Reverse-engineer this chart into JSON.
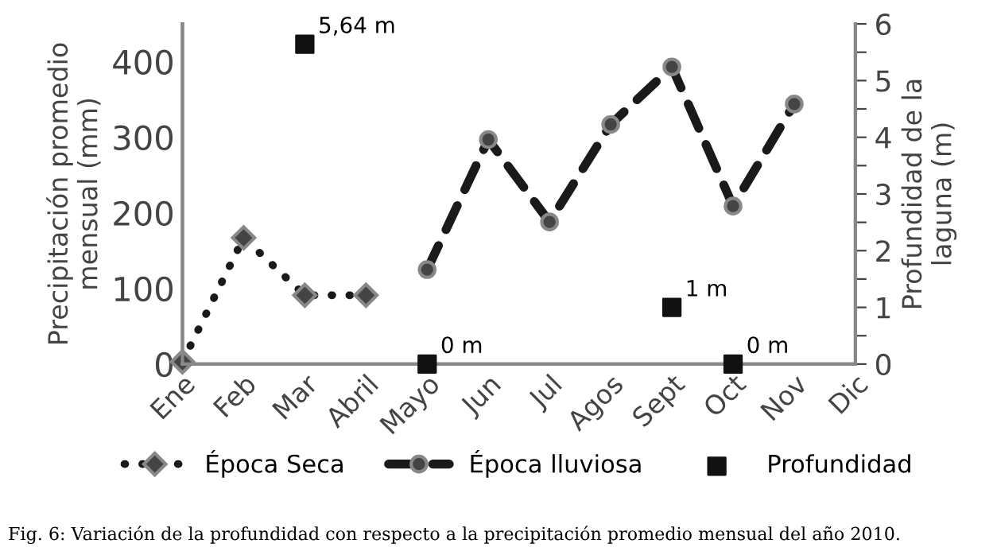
{
  "chart_data": {
    "type": "line",
    "ylabel": "Precipitación promedio\nmensual (mm)",
    "y2label": "Profundidad de la\nlaguna (m)",
    "categories": [
      "Ene",
      "Feb",
      "Mar",
      "Abril",
      "Mayo",
      "Jun",
      "Jul",
      "Agos",
      "Sept",
      "Oct",
      "Nov",
      "Dic"
    ],
    "series": [
      {
        "name": "Época Seca",
        "color": "#1a1a1a",
        "marker": "diamond",
        "line_style": "dotted",
        "values": [
          3,
          167,
          91,
          91,
          null,
          null,
          null,
          null,
          null,
          null,
          null,
          null
        ]
      },
      {
        "name": "Época lluviosa",
        "color": "#1a1a1a",
        "marker": "circle",
        "line_style": "dashed",
        "values": [
          null,
          null,
          null,
          null,
          125,
          297,
          188,
          317,
          393,
          209,
          344,
          null
        ]
      },
      {
        "name": "Profundidad",
        "type": "scatter",
        "color": "#111111",
        "marker": "square",
        "axis": "y2",
        "values": [
          null,
          null,
          5.64,
          null,
          0,
          null,
          null,
          null,
          1,
          0,
          null,
          null
        ],
        "value_labels": [
          null,
          null,
          "5,64 m",
          null,
          "0 m",
          null,
          null,
          null,
          "1 m",
          "0 m",
          null,
          null
        ]
      }
    ],
    "ylim": [
      0,
      450
    ],
    "yticks": [
      0,
      100,
      200,
      300,
      400
    ],
    "y2lim": [
      0,
      6
    ],
    "y2ticks": [
      0,
      {
        "value": 0.5,
        "label": null
      },
      1,
      {
        "value": 1.5,
        "label": null
      },
      2,
      {
        "value": 2.5,
        "label": null
      },
      3,
      {
        "value": 3.5,
        "label": null
      },
      4,
      {
        "value": 4.5,
        "label": null
      },
      5,
      {
        "value": 5.5,
        "label": null
      },
      6
    ],
    "legend": "bottom",
    "grid": false,
    "annotations": [
      "Fig. 6: Variación de la profundidad con respecto a la precipitación promedio mensual del año 2010."
    ]
  }
}
